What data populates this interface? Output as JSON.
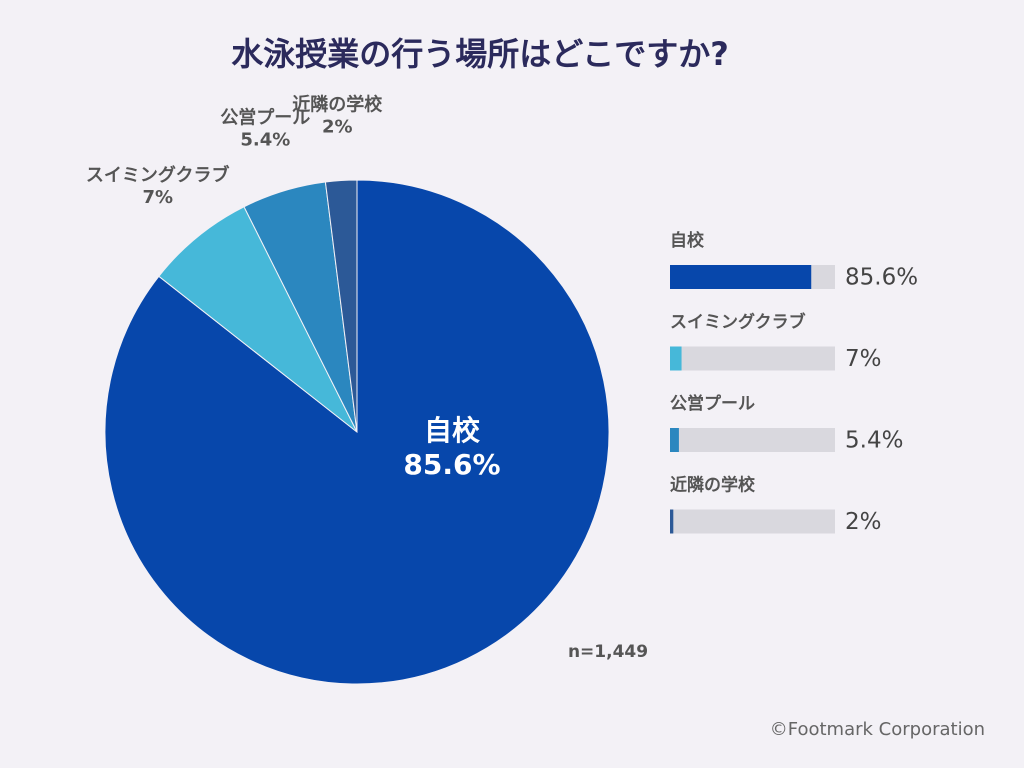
{
  "chart_data": {
    "type": "pie",
    "title": "水泳授業の行う場所はどこですか?",
    "categories": [
      "自校",
      "スイミングクラブ",
      "公営プール",
      "近隣の学校"
    ],
    "values": [
      85.6,
      7,
      5.4,
      2
    ],
    "value_labels": [
      "85.6%",
      "7%",
      "5.4%",
      "2%"
    ],
    "colors": [
      "#0747ab",
      "#46b8d9",
      "#2b87bf",
      "#2c5997"
    ],
    "annotation": "n=1,449",
    "source": "©Footmark Corporation"
  }
}
